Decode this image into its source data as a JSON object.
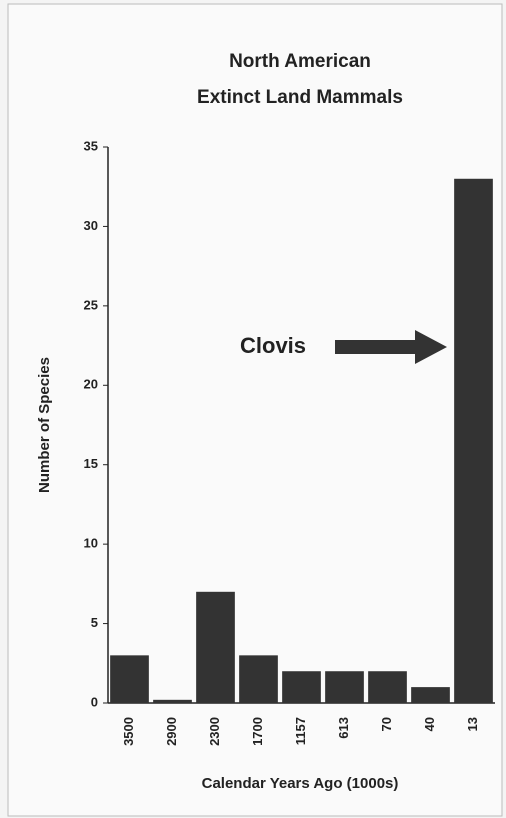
{
  "chart_data": {
    "type": "bar",
    "title": [
      "North American",
      "Extinct Land Mammals"
    ],
    "xlabel": "Calendar Years Ago (1000s)",
    "ylabel": "Number of Species",
    "annotation": "Clovis",
    "categories": [
      "3500",
      "2900",
      "2300",
      "1700",
      "1157",
      "613",
      "70",
      "40",
      "13"
    ],
    "values": [
      3,
      0.2,
      7,
      3,
      2,
      2,
      2,
      1,
      33
    ],
    "color": "#333333",
    "ylim": [
      0,
      35
    ],
    "yticks": [
      0,
      5,
      10,
      15,
      20,
      25,
      30,
      35
    ],
    "grid": false
  }
}
